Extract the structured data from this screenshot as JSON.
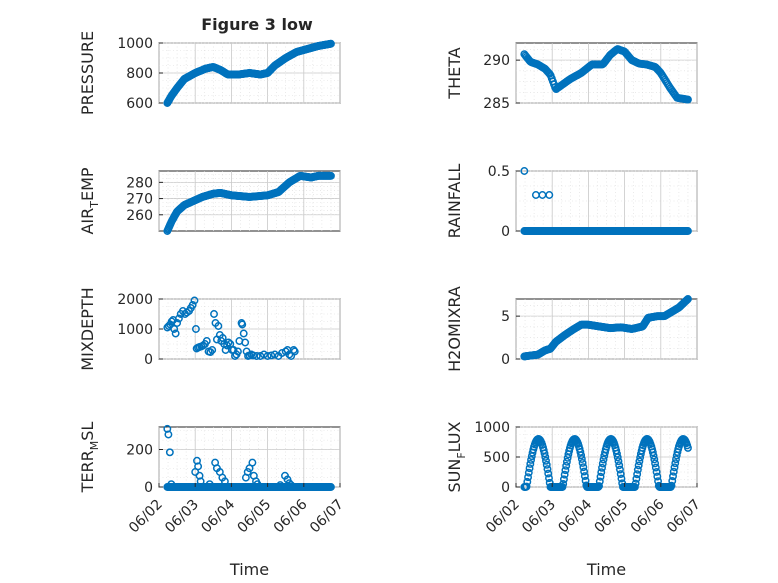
{
  "figure": {
    "title": "Figure 3 low",
    "time_label": "Time",
    "x_ticks": [
      "06/02",
      "06/03",
      "06/04",
      "06/05",
      "06/06",
      "06/07"
    ],
    "series_color": "#0072BD"
  },
  "chart_data": [
    {
      "type": "scatter",
      "name": "pressure",
      "title": "Figure 3 low",
      "ylabel": "PRESSURE",
      "xlabel": "",
      "ylim": [
        600,
        1000
      ],
      "yticks": [
        600,
        800,
        1000
      ],
      "xlim": [
        0,
        5
      ],
      "grid": true,
      "start_day": 0.23,
      "end_day": 4.75,
      "samples": 260,
      "keys": [
        [
          0.23,
          600
        ],
        [
          0.35,
          650
        ],
        [
          0.5,
          700
        ],
        [
          0.7,
          760
        ],
        [
          1.0,
          800
        ],
        [
          1.3,
          830
        ],
        [
          1.5,
          840
        ],
        [
          1.7,
          820
        ],
        [
          1.9,
          790
        ],
        [
          2.2,
          790
        ],
        [
          2.5,
          800
        ],
        [
          2.8,
          790
        ],
        [
          3.0,
          800
        ],
        [
          3.2,
          850
        ],
        [
          3.5,
          900
        ],
        [
          3.8,
          940
        ],
        [
          4.1,
          960
        ],
        [
          4.4,
          980
        ],
        [
          4.75,
          995
        ]
      ]
    },
    {
      "type": "scatter",
      "name": "theta",
      "ylabel": "THETA",
      "xlabel": "",
      "ylim": [
        285,
        292
      ],
      "yticks": [
        285,
        290
      ],
      "xlim": [
        0,
        5
      ],
      "grid": true,
      "start_day": 0.23,
      "end_day": 4.75,
      "samples": 150,
      "keys": [
        [
          0.23,
          290.7
        ],
        [
          0.4,
          289.8
        ],
        [
          0.6,
          289.5
        ],
        [
          0.8,
          289.0
        ],
        [
          0.95,
          288.3
        ],
        [
          1.1,
          286.6
        ],
        [
          1.3,
          287.2
        ],
        [
          1.5,
          287.8
        ],
        [
          1.8,
          288.5
        ],
        [
          2.1,
          289.5
        ],
        [
          2.4,
          289.5
        ],
        [
          2.6,
          290.6
        ],
        [
          2.8,
          291.3
        ],
        [
          3.0,
          291.0
        ],
        [
          3.2,
          290.0
        ],
        [
          3.4,
          289.6
        ],
        [
          3.6,
          289.5
        ],
        [
          3.85,
          289.2
        ],
        [
          4.0,
          288.5
        ],
        [
          4.25,
          286.8
        ],
        [
          4.45,
          285.6
        ],
        [
          4.75,
          285.4
        ]
      ]
    },
    {
      "type": "scatter",
      "name": "air_temp",
      "ylabel": "AIR_TEMP",
      "ylabel_parts": [
        "AIR",
        "T",
        "EMP"
      ],
      "xlabel": "",
      "ylim": [
        250,
        287
      ],
      "yticks": [
        260,
        270,
        280
      ],
      "xlim": [
        0,
        5
      ],
      "grid": true,
      "start_day": 0.23,
      "end_day": 4.75,
      "samples": 260,
      "keys": [
        [
          0.23,
          250
        ],
        [
          0.35,
          256
        ],
        [
          0.5,
          262
        ],
        [
          0.7,
          266
        ],
        [
          0.9,
          268
        ],
        [
          1.2,
          271
        ],
        [
          1.5,
          273
        ],
        [
          1.7,
          273.5
        ],
        [
          2.0,
          272
        ],
        [
          2.5,
          271
        ],
        [
          3.0,
          272
        ],
        [
          3.3,
          274
        ],
        [
          3.6,
          280
        ],
        [
          3.9,
          284
        ],
        [
          4.2,
          283
        ],
        [
          4.4,
          284
        ],
        [
          4.75,
          284
        ]
      ]
    },
    {
      "type": "scatter",
      "name": "rainfall",
      "ylabel": "RAINFALL",
      "xlabel": "",
      "ylim": [
        0,
        0.5
      ],
      "yticks": [
        0,
        0.5
      ],
      "xlim": [
        0,
        5
      ],
      "grid": true,
      "start_day": 0.23,
      "end_day": 4.75,
      "samples": 200,
      "base": 0,
      "extra": [
        [
          0.23,
          0.5
        ],
        [
          0.55,
          0.3
        ],
        [
          0.73,
          0.3
        ],
        [
          0.92,
          0.3
        ]
      ]
    },
    {
      "type": "scatter",
      "name": "mixdepth",
      "ylabel": "MIXDEPTH",
      "xlabel": "",
      "ylim": [
        0,
        2000
      ],
      "yticks": [
        0,
        1000,
        2000
      ],
      "xlim": [
        0,
        5
      ],
      "grid": true,
      "points": [
        [
          0.23,
          1050
        ],
        [
          0.27,
          1100
        ],
        [
          0.31,
          1150
        ],
        [
          0.35,
          1250
        ],
        [
          0.39,
          1300
        ],
        [
          0.42,
          1000
        ],
        [
          0.46,
          850
        ],
        [
          0.5,
          1200
        ],
        [
          0.55,
          1350
        ],
        [
          0.6,
          1500
        ],
        [
          0.66,
          1600
        ],
        [
          0.72,
          1500
        ],
        [
          0.77,
          1550
        ],
        [
          0.83,
          1600
        ],
        [
          0.88,
          1700
        ],
        [
          0.93,
          1800
        ],
        [
          0.98,
          1950
        ],
        [
          1.02,
          1000
        ],
        [
          1.04,
          350
        ],
        [
          1.08,
          380
        ],
        [
          1.12,
          400
        ],
        [
          1.17,
          420
        ],
        [
          1.22,
          450
        ],
        [
          1.27,
          500
        ],
        [
          1.32,
          600
        ],
        [
          1.37,
          250
        ],
        [
          1.42,
          230
        ],
        [
          1.47,
          300
        ],
        [
          1.52,
          1500
        ],
        [
          1.56,
          1200
        ],
        [
          1.6,
          650
        ],
        [
          1.64,
          1100
        ],
        [
          1.68,
          800
        ],
        [
          1.72,
          600
        ],
        [
          1.76,
          700
        ],
        [
          1.8,
          500
        ],
        [
          1.84,
          300
        ],
        [
          1.88,
          450
        ],
        [
          1.92,
          550
        ],
        [
          1.97,
          500
        ],
        [
          2.02,
          300
        ],
        [
          2.06,
          300
        ],
        [
          2.1,
          100
        ],
        [
          2.14,
          150
        ],
        [
          2.18,
          250
        ],
        [
          2.22,
          600
        ],
        [
          2.28,
          1200
        ],
        [
          2.3,
          1150
        ],
        [
          2.34,
          850
        ],
        [
          2.38,
          550
        ],
        [
          2.42,
          250
        ],
        [
          2.46,
          100
        ],
        [
          2.5,
          120
        ],
        [
          2.55,
          150
        ],
        [
          2.6,
          120
        ],
        [
          2.7,
          100
        ],
        [
          2.8,
          100
        ],
        [
          2.9,
          150
        ],
        [
          3.0,
          100
        ],
        [
          3.1,
          120
        ],
        [
          3.2,
          150
        ],
        [
          3.3,
          100
        ],
        [
          3.4,
          200
        ],
        [
          3.5,
          250
        ],
        [
          3.55,
          300
        ],
        [
          3.6,
          150
        ],
        [
          3.65,
          100
        ],
        [
          3.72,
          300
        ],
        [
          3.75,
          250
        ]
      ]
    },
    {
      "type": "scatter",
      "name": "h2omixra",
      "ylabel": "H2OMIXRA",
      "xlabel": "",
      "ylim": [
        0,
        7
      ],
      "yticks": [
        0,
        5
      ],
      "xlim": [
        0,
        5
      ],
      "grid": true,
      "start_day": 0.23,
      "end_day": 4.75,
      "samples": 260,
      "keys": [
        [
          0.23,
          0.3
        ],
        [
          0.4,
          0.4
        ],
        [
          0.6,
          0.5
        ],
        [
          0.8,
          1.0
        ],
        [
          0.95,
          1.2
        ],
        [
          1.1,
          2.0
        ],
        [
          1.35,
          2.8
        ],
        [
          1.6,
          3.5
        ],
        [
          1.8,
          4.0
        ],
        [
          2.0,
          4.0
        ],
        [
          2.3,
          3.8
        ],
        [
          2.6,
          3.6
        ],
        [
          2.9,
          3.7
        ],
        [
          3.2,
          3.5
        ],
        [
          3.5,
          3.8
        ],
        [
          3.65,
          4.8
        ],
        [
          3.9,
          5.0
        ],
        [
          4.1,
          5.0
        ],
        [
          4.3,
          5.5
        ],
        [
          4.5,
          6.0
        ],
        [
          4.75,
          7.0
        ]
      ]
    },
    {
      "type": "scatter",
      "name": "terr_msl",
      "ylabel": "TERR_MSL",
      "ylabel_parts": [
        "TERR",
        "M",
        "SL"
      ],
      "xlabel": "Time",
      "ylim": [
        0,
        320
      ],
      "yticks": [
        0,
        200
      ],
      "xlim": [
        0,
        5
      ],
      "xticks": [
        "06/02",
        "06/03",
        "06/04",
        "06/05",
        "06/06",
        "06/07"
      ],
      "grid": true,
      "start_day": 0.23,
      "end_day": 4.75,
      "samples": 200,
      "base": 0,
      "extra": [
        [
          0.23,
          310
        ],
        [
          0.26,
          280
        ],
        [
          0.3,
          185
        ],
        [
          0.34,
          15
        ],
        [
          1.0,
          80
        ],
        [
          1.05,
          140
        ],
        [
          1.08,
          110
        ],
        [
          1.12,
          60
        ],
        [
          1.15,
          30
        ],
        [
          1.4,
          15
        ],
        [
          1.55,
          130
        ],
        [
          1.6,
          100
        ],
        [
          1.68,
          80
        ],
        [
          1.75,
          50
        ],
        [
          1.82,
          30
        ],
        [
          2.4,
          50
        ],
        [
          2.45,
          80
        ],
        [
          2.5,
          100
        ],
        [
          2.58,
          130
        ],
        [
          2.62,
          60
        ],
        [
          2.68,
          30
        ],
        [
          2.72,
          15
        ],
        [
          3.35,
          10
        ],
        [
          3.48,
          60
        ],
        [
          3.55,
          40
        ],
        [
          3.6,
          20
        ],
        [
          3.65,
          10
        ]
      ]
    },
    {
      "type": "scatter",
      "name": "sun_flux",
      "ylabel": "SUN_FLUX",
      "ylabel_parts": [
        "SUN",
        "F",
        "LUX"
      ],
      "xlabel": "Time",
      "ylim": [
        0,
        1000
      ],
      "yticks": [
        0,
        500,
        1000
      ],
      "xlim": [
        0,
        5
      ],
      "xticks": [
        "06/02",
        "06/03",
        "06/04",
        "06/05",
        "06/06",
        "06/07"
      ],
      "grid": true,
      "start_day": 0.23,
      "end_day": 4.75,
      "samples": 220,
      "diurnal": {
        "peak": 800,
        "center_offset": 0.62,
        "half_width": 0.33
      }
    }
  ]
}
